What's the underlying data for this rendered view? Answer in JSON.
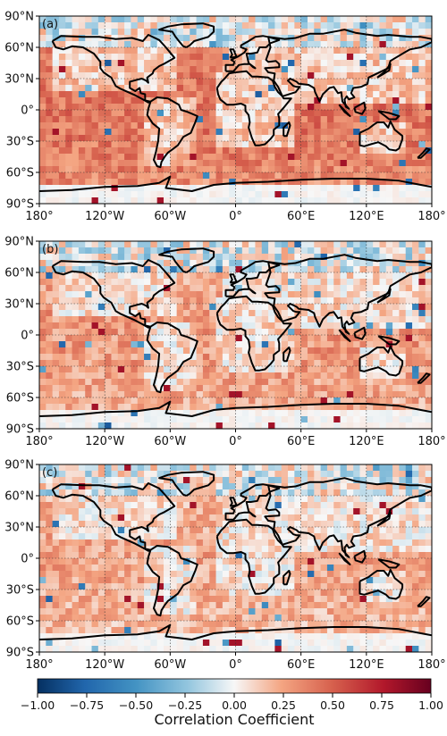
{
  "panels": [
    {
      "label": "(a)",
      "seed": 11,
      "base": 0.3
    },
    {
      "label": "(b)",
      "seed": 23,
      "base": 0.18
    },
    {
      "label": "(c)",
      "seed": 37,
      "base": 0.14
    }
  ],
  "axes": {
    "lat_ticks": [
      "90°N",
      "60°N",
      "30°N",
      "0°",
      "30°S",
      "60°S",
      "90°S"
    ],
    "lon_ticks": [
      "180°",
      "120°W",
      "60°W",
      "0°",
      "60°E",
      "120°E",
      "180°"
    ]
  },
  "colorbar": {
    "min": -1.0,
    "max": 1.0,
    "ticks": [
      "−1.00",
      "−0.75",
      "−0.50",
      "−0.25",
      "0.00",
      "0.25",
      "0.50",
      "0.75",
      "1.00"
    ],
    "label": "Correlation Coefficient",
    "colormap": "RdBu_r"
  }
}
